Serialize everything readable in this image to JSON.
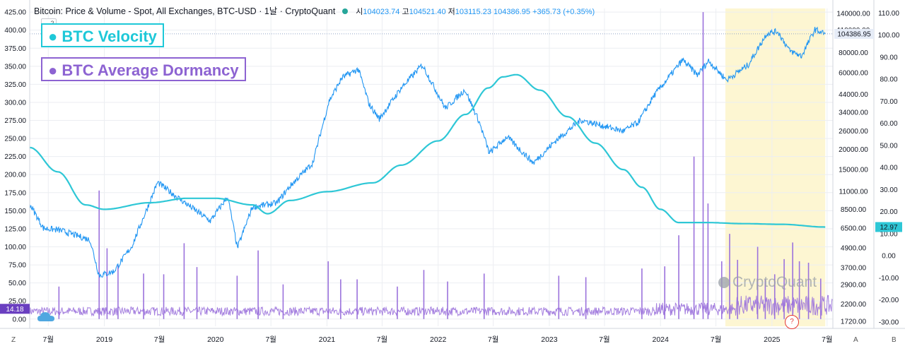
{
  "header": {
    "title": "Bitcoin: Price & Volume - Spot, All Exchanges, BTC-USD",
    "interval": "1날",
    "source": "CryptoQuant",
    "open_label": "시",
    "open": "104023.74",
    "high_label": "고",
    "high": "104521.40",
    "low_label": "저",
    "low": "103115.23",
    "close": "104386.95",
    "change": "+365.73 (+0.35%)",
    "collapse_count": "2"
  },
  "legend": {
    "velocity_label": "● BTC Velocity",
    "dormancy_label": "● BTC Average Dormancy"
  },
  "colors": {
    "price": "#2196f3",
    "velocity": "#2ec7d6",
    "dormancy": "#9b72dc",
    "highlight": "#fdf6d2",
    "grid": "#eceef2",
    "price_line": "#90a4c7"
  },
  "watermark": "CryptoQuant",
  "corners": {
    "bottom_left": "Z",
    "bottom_right_a": "A",
    "bottom_right_b": "B",
    "help": "?"
  },
  "chart_data": {
    "type": "line",
    "x_tick_labels": [
      "7월",
      "2019",
      "7월",
      "2020",
      "7월",
      "2021",
      "7월",
      "2022",
      "7월",
      "2023",
      "7월",
      "2024",
      "7월",
      "2025",
      "7월"
    ],
    "x_tick_dates": [
      "2018-07-01",
      "2019-01-01",
      "2019-07-01",
      "2020-01-01",
      "2020-07-01",
      "2021-01-01",
      "2021-07-01",
      "2022-01-01",
      "2022-07-01",
      "2023-01-01",
      "2023-07-01",
      "2024-01-01",
      "2024-07-01",
      "2025-01-01",
      "2025-07-01"
    ],
    "x_range": [
      "2018-05-01",
      "2025-07-20"
    ],
    "left_axis": {
      "ticks": [
        "425.00",
        "400.00",
        "375.00",
        "350.00",
        "325.00",
        "300.00",
        "275.00",
        "250.00",
        "225.00",
        "200.00",
        "175.00",
        "150.00",
        "125.00",
        "100.00",
        "75.00",
        "50.00",
        "25.00",
        "0.00"
      ],
      "range": [
        -10,
        430
      ],
      "current_value": "14.18"
    },
    "price_axis": {
      "scale": "log",
      "ticks": [
        "140000.00",
        "110000.00",
        "80000.00",
        "60000.00",
        "44000.00",
        "34000.00",
        "26000.00",
        "20000.00",
        "15000.00",
        "11000.00",
        "8500.00",
        "6500.00",
        "4900.00",
        "3700.00",
        "2900.00",
        "2200.00",
        "1720.00"
      ],
      "range": [
        1600,
        150000
      ],
      "current_value": "104386.95"
    },
    "velocity_axis": {
      "ticks": [
        "110.00",
        "100.00",
        "90.00",
        "80.00",
        "70.00",
        "60.00",
        "50.00",
        "40.00",
        "30.00",
        "20.00",
        "10.00",
        "0.00",
        "-10.00",
        "-20.00",
        "-30.00"
      ],
      "range": [
        -32,
        112
      ],
      "current_value": "12.97"
    },
    "highlight_range": [
      "2024-08-01",
      "2025-06-25"
    ],
    "series": [
      {
        "name": "BTC Velocity",
        "axis": "velocity",
        "points": [
          [
            "2018-05-01",
            49
          ],
          [
            "2018-08-01",
            38
          ],
          [
            "2018-11-01",
            23
          ],
          [
            "2019-01-01",
            21
          ],
          [
            "2019-06-01",
            24
          ],
          [
            "2019-10-01",
            26
          ],
          [
            "2020-01-01",
            26
          ],
          [
            "2020-05-01",
            23
          ],
          [
            "2020-06-20",
            19
          ],
          [
            "2020-09-01",
            25
          ],
          [
            "2021-01-01",
            29
          ],
          [
            "2021-06-01",
            33
          ],
          [
            "2021-09-01",
            41
          ],
          [
            "2022-01-01",
            52
          ],
          [
            "2022-04-01",
            64
          ],
          [
            "2022-06-15",
            76
          ],
          [
            "2022-08-01",
            81
          ],
          [
            "2022-09-15",
            82
          ],
          [
            "2022-12-01",
            75
          ],
          [
            "2023-03-01",
            63
          ],
          [
            "2023-06-01",
            51
          ],
          [
            "2023-09-01",
            39
          ],
          [
            "2023-11-01",
            31
          ],
          [
            "2024-01-01",
            21
          ],
          [
            "2024-03-01",
            15
          ],
          [
            "2024-06-01",
            15
          ],
          [
            "2024-10-01",
            14.5
          ],
          [
            "2025-02-01",
            14.2
          ],
          [
            "2025-06-25",
            12.97
          ]
        ]
      },
      {
        "name": "Bitcoin: Price & Volume - Spot, All Exchanges, BTC-USD",
        "axis": "price",
        "points": [
          [
            "2018-05-01",
            9200
          ],
          [
            "2018-06-15",
            6500
          ],
          [
            "2018-08-10",
            6300
          ],
          [
            "2018-11-15",
            5500
          ],
          [
            "2018-12-15",
            3300
          ],
          [
            "2019-02-01",
            3500
          ],
          [
            "2019-04-01",
            5000
          ],
          [
            "2019-06-25",
            12500
          ],
          [
            "2019-09-01",
            10000
          ],
          [
            "2019-12-15",
            7200
          ],
          [
            "2020-02-10",
            10200
          ],
          [
            "2020-03-13",
            4900
          ],
          [
            "2020-05-01",
            8800
          ],
          [
            "2020-07-20",
            9300
          ],
          [
            "2020-09-01",
            11800
          ],
          [
            "2020-11-15",
            16500
          ],
          [
            "2021-01-08",
            40000
          ],
          [
            "2021-02-20",
            56000
          ],
          [
            "2021-04-14",
            63000
          ],
          [
            "2021-05-20",
            38000
          ],
          [
            "2021-06-22",
            31000
          ],
          [
            "2021-09-01",
            48000
          ],
          [
            "2021-11-10",
            67000
          ],
          [
            "2022-01-25",
            36000
          ],
          [
            "2022-03-30",
            47000
          ],
          [
            "2022-05-15",
            30000
          ],
          [
            "2022-06-18",
            19000
          ],
          [
            "2022-08-15",
            24000
          ],
          [
            "2022-11-10",
            16500
          ],
          [
            "2023-01-20",
            22500
          ],
          [
            "2023-04-14",
            30500
          ],
          [
            "2023-09-01",
            26000
          ],
          [
            "2023-10-20",
            29500
          ],
          [
            "2023-12-10",
            43000
          ],
          [
            "2024-03-14",
            72000
          ],
          [
            "2024-05-01",
            58000
          ],
          [
            "2024-06-07",
            71000
          ],
          [
            "2024-08-05",
            54000
          ],
          [
            "2024-10-15",
            67000
          ],
          [
            "2024-12-15",
            105000
          ],
          [
            "2025-01-20",
            108000
          ],
          [
            "2025-02-28",
            82000
          ],
          [
            "2025-04-08",
            76000
          ],
          [
            "2025-05-22",
            111000
          ],
          [
            "2025-06-25",
            104386.95
          ]
        ]
      },
      {
        "name": "BTC Average Dormancy",
        "axis": "left",
        "baseline": 12,
        "spikes": [
          [
            "2018-08-05",
            45
          ],
          [
            "2018-12-15",
            178
          ],
          [
            "2019-01-10",
            98
          ],
          [
            "2019-02-15",
            75
          ],
          [
            "2019-05-10",
            63
          ],
          [
            "2019-07-15",
            62
          ],
          [
            "2019-09-20",
            105
          ],
          [
            "2019-11-01",
            72
          ],
          [
            "2020-03-12",
            60
          ],
          [
            "2020-05-20",
            95
          ],
          [
            "2020-08-10",
            48
          ],
          [
            "2021-01-05",
            80
          ],
          [
            "2021-02-15",
            55
          ],
          [
            "2021-04-10",
            55
          ],
          [
            "2021-08-20",
            45
          ],
          [
            "2021-11-15",
            68
          ],
          [
            "2022-02-01",
            52
          ],
          [
            "2022-06-01",
            63
          ],
          [
            "2023-02-01",
            60
          ],
          [
            "2023-05-01",
            58
          ],
          [
            "2023-11-01",
            70
          ],
          [
            "2024-01-15",
            73
          ],
          [
            "2024-03-01",
            116
          ],
          [
            "2024-04-20",
            225
          ],
          [
            "2024-05-20",
            425
          ],
          [
            "2024-06-05",
            160
          ],
          [
            "2024-07-20",
            80
          ],
          [
            "2024-08-15",
            118
          ],
          [
            "2024-09-10",
            82
          ],
          [
            "2024-11-15",
            100
          ],
          [
            "2024-12-10",
            55
          ],
          [
            "2025-01-10",
            62
          ],
          [
            "2025-02-10",
            83
          ],
          [
            "2025-03-10",
            106
          ],
          [
            "2025-04-01",
            80
          ],
          [
            "2025-05-01",
            78
          ],
          [
            "2025-06-10",
            56
          ]
        ]
      }
    ],
    "grid": true
  }
}
